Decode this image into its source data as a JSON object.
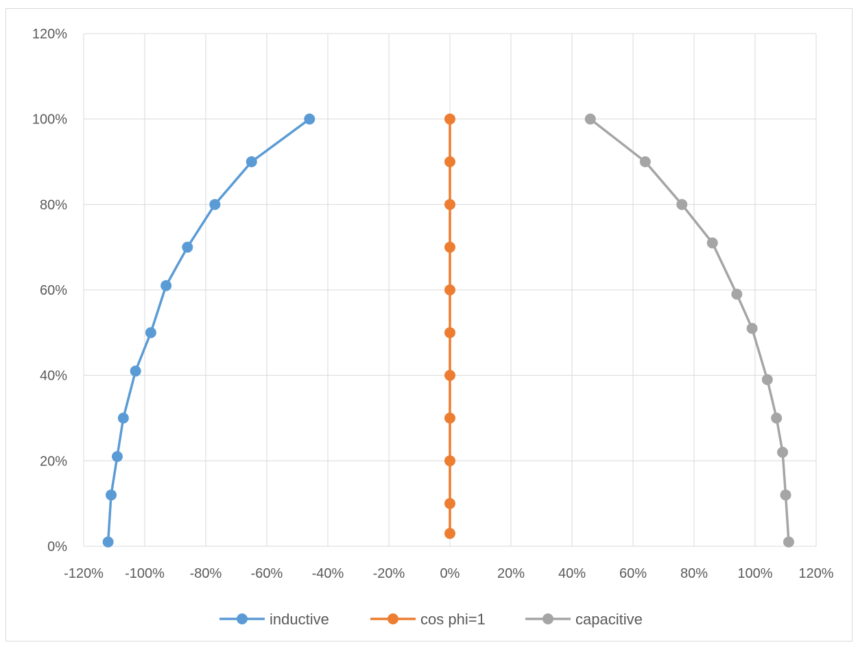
{
  "chart_data": {
    "type": "scatter",
    "title": "",
    "xlabel": "",
    "ylabel": "",
    "xlim": [
      -1.2,
      1.2
    ],
    "ylim": [
      0,
      1.2
    ],
    "x_ticks": [
      -1.2,
      -1.0,
      -0.8,
      -0.6,
      -0.4,
      -0.2,
      0,
      0.2,
      0.4,
      0.6,
      0.8,
      1.0,
      1.2
    ],
    "y_ticks": [
      0,
      0.2,
      0.4,
      0.6,
      0.8,
      1.0,
      1.2
    ],
    "x_tick_labels": [
      "-120%",
      "-100%",
      "-80%",
      "-60%",
      "-40%",
      "-20%",
      "0%",
      "20%",
      "40%",
      "60%",
      "80%",
      "100%",
      "120%"
    ],
    "y_tick_labels": [
      "0%",
      "20%",
      "40%",
      "60%",
      "80%",
      "100%",
      "120%"
    ],
    "grid": true,
    "legend_position": "bottom",
    "series": [
      {
        "name": "inductive",
        "color": "#5b9bd5",
        "points": [
          [
            -1.12,
            0.01
          ],
          [
            -1.11,
            0.12
          ],
          [
            -1.09,
            0.21
          ],
          [
            -1.07,
            0.3
          ],
          [
            -1.03,
            0.41
          ],
          [
            -0.98,
            0.5
          ],
          [
            -0.93,
            0.61
          ],
          [
            -0.86,
            0.7
          ],
          [
            -0.77,
            0.8
          ],
          [
            -0.65,
            0.9
          ],
          [
            -0.46,
            1.0
          ]
        ]
      },
      {
        "name": "cos phi=1",
        "color": "#ed7d31",
        "points": [
          [
            0,
            0.03
          ],
          [
            0,
            0.1
          ],
          [
            0,
            0.2
          ],
          [
            0,
            0.3
          ],
          [
            0,
            0.4
          ],
          [
            0,
            0.5
          ],
          [
            0,
            0.6
          ],
          [
            0,
            0.7
          ],
          [
            0,
            0.8
          ],
          [
            0,
            0.9
          ],
          [
            0,
            1.0
          ]
        ]
      },
      {
        "name": "capacitive",
        "color": "#a5a5a5",
        "points": [
          [
            1.11,
            0.01
          ],
          [
            1.1,
            0.12
          ],
          [
            1.09,
            0.22
          ],
          [
            1.07,
            0.3
          ],
          [
            1.04,
            0.39
          ],
          [
            0.99,
            0.51
          ],
          [
            0.94,
            0.59
          ],
          [
            0.86,
            0.71
          ],
          [
            0.76,
            0.8
          ],
          [
            0.64,
            0.9
          ],
          [
            0.46,
            1.0
          ]
        ]
      }
    ]
  }
}
